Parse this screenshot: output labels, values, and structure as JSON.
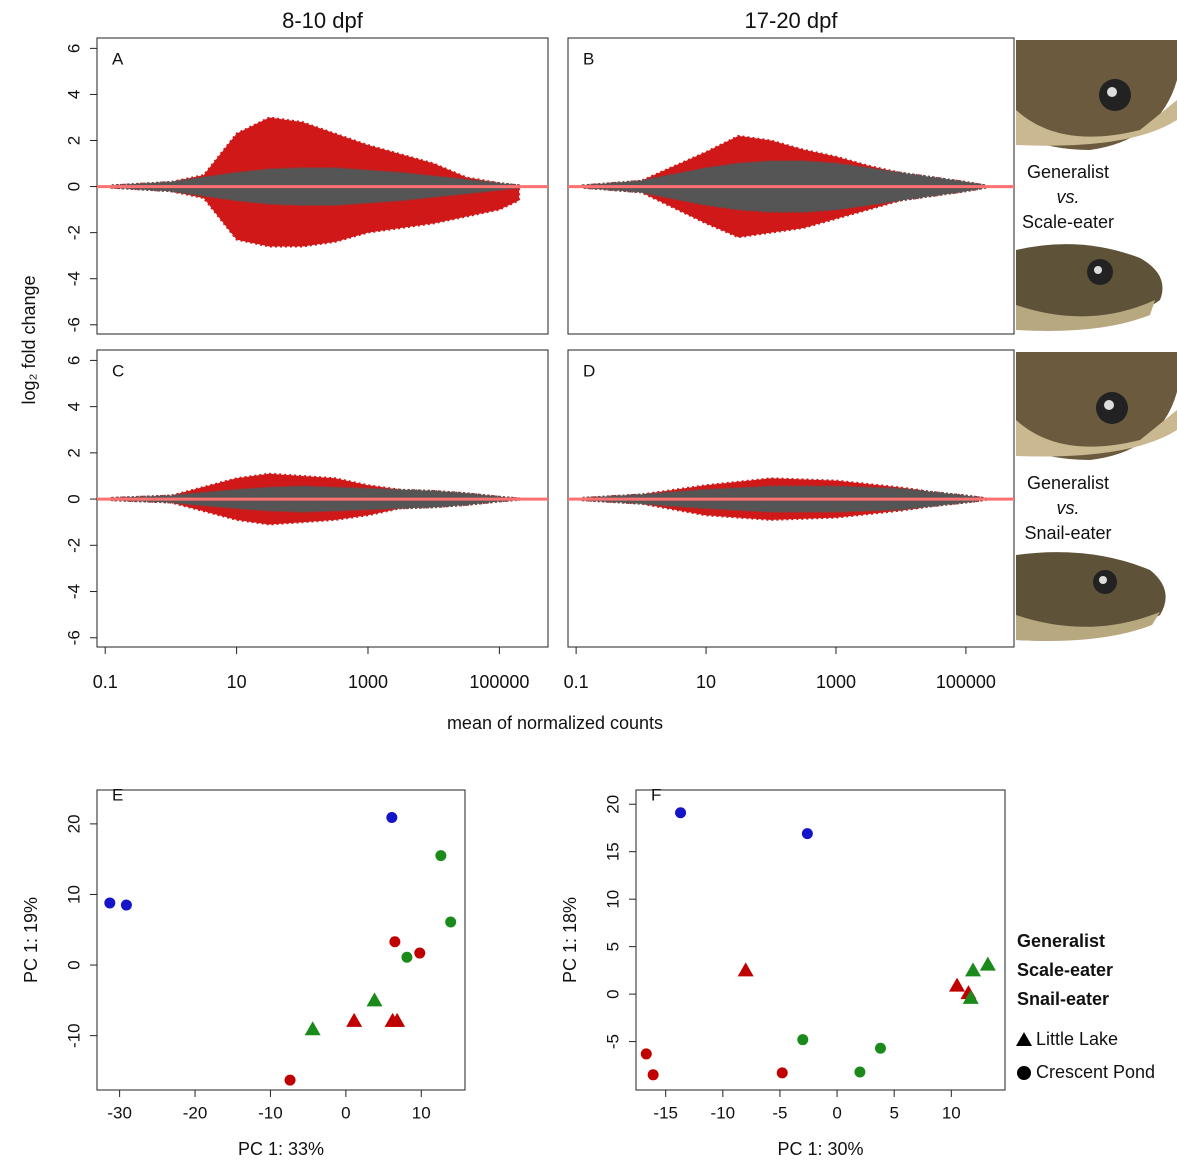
{
  "figure": {
    "ma_y_label": "log₂ fold change",
    "ma_x_label": "mean of normalized counts",
    "comparisons": [
      {
        "top": "Generalist",
        "vs": "vs.",
        "bottom": "Scale-eater"
      },
      {
        "top": "Generalist",
        "vs": "vs.",
        "bottom": "Snail-eater"
      }
    ],
    "legend": {
      "groups": [
        {
          "name": "Generalist",
          "color": "#c00000"
        },
        {
          "name": "Scale-eater",
          "color": "#1414c8"
        },
        {
          "name": "Snail-eater",
          "color": "#1a8a1a"
        }
      ],
      "sites": [
        {
          "name": "Little Lake",
          "marker": "triangle"
        },
        {
          "name": "Crescent Pond",
          "marker": "circle"
        }
      ]
    }
  },
  "chart_data": [
    {
      "type": "ma",
      "panel": "A",
      "title": "8-10 dpf",
      "log_x": true,
      "xlim": [
        0.075,
        550000
      ],
      "ylim": [
        -6.4,
        6.45
      ],
      "yticks": [
        -6,
        -4,
        -2,
        0,
        2,
        4,
        6
      ]
    },
    {
      "type": "ma",
      "panel": "B",
      "title": "17-20 dpf",
      "log_x": true,
      "xlim": [
        0.075,
        550000
      ],
      "ylim": [
        -6.4,
        6.45
      ]
    },
    {
      "type": "ma",
      "panel": "C",
      "log_x": true,
      "xlim": [
        0.075,
        550000
      ],
      "ylim": [
        -6.4,
        6.45
      ],
      "yticks": [
        -6,
        -4,
        -2,
        0,
        2,
        4,
        6
      ],
      "xticks": [
        0.1,
        10,
        1000,
        100000
      ]
    },
    {
      "type": "ma",
      "panel": "D",
      "log_x": true,
      "xlim": [
        0.075,
        550000
      ],
      "ylim": [
        -6.4,
        6.45
      ],
      "xticks": [
        0.1,
        10,
        1000,
        100000
      ]
    },
    {
      "type": "scatter",
      "panel": "E",
      "x_label": "PC 1: 33%",
      "y_label": "PC 1: 19%",
      "xlim": [
        -33,
        15.8
      ],
      "ylim": [
        -17.7,
        24.8
      ],
      "xticks": [
        -30,
        -20,
        -10,
        0,
        10
      ],
      "yticks": [
        -10,
        0,
        10,
        20
      ],
      "series": [
        {
          "color": "#c00000",
          "marker": "circle",
          "x": [
            6.5,
            9.8,
            -7.4
          ],
          "y": [
            3.3,
            1.7,
            -16.3
          ]
        },
        {
          "color": "#c00000",
          "marker": "triangle",
          "x": [
            1.1,
            6.2,
            6.8
          ],
          "y": [
            -7.9,
            -7.9,
            -7.9
          ]
        },
        {
          "color": "#1414c8",
          "marker": "circle",
          "x": [
            -31.3,
            -29.1,
            6.1
          ],
          "y": [
            8.8,
            8.5,
            20.9
          ]
        },
        {
          "color": "#1a8a1a",
          "marker": "circle",
          "x": [
            12.6,
            13.9,
            8.1
          ],
          "y": [
            15.5,
            6.1,
            1.1
          ]
        },
        {
          "color": "#1a8a1a",
          "marker": "triangle",
          "x": [
            3.8,
            -4.4
          ],
          "y": [
            -5.0,
            -9.1
          ]
        }
      ]
    },
    {
      "type": "scatter",
      "panel": "F",
      "x_label": "PC 1: 30%",
      "y_label": "PC 1: 18%",
      "xlim": [
        -17.6,
        14.7
      ],
      "ylim": [
        -10.1,
        21.5
      ],
      "xticks": [
        -15,
        -10,
        -5,
        0,
        5,
        10
      ],
      "yticks": [
        -5,
        0,
        5,
        10,
        15,
        20
      ],
      "series": [
        {
          "color": "#c00000",
          "marker": "circle",
          "x": [
            -16.7,
            -16.1,
            -4.8
          ],
          "y": [
            -6.3,
            -8.5,
            -8.3
          ]
        },
        {
          "color": "#c00000",
          "marker": "triangle",
          "x": [
            -8.0,
            10.5,
            11.5
          ],
          "y": [
            2.5,
            0.9,
            0.1
          ]
        },
        {
          "color": "#1414c8",
          "marker": "circle",
          "x": [
            -13.7,
            -2.6
          ],
          "y": [
            19.1,
            16.9
          ]
        },
        {
          "color": "#1a8a1a",
          "marker": "circle",
          "x": [
            -3.0,
            3.8,
            2.0
          ],
          "y": [
            -4.8,
            -5.7,
            -8.2
          ]
        },
        {
          "color": "#1a8a1a",
          "marker": "triangle",
          "x": [
            11.7,
            11.9,
            13.2
          ],
          "y": [
            -0.4,
            2.5,
            3.1
          ]
        }
      ]
    }
  ]
}
